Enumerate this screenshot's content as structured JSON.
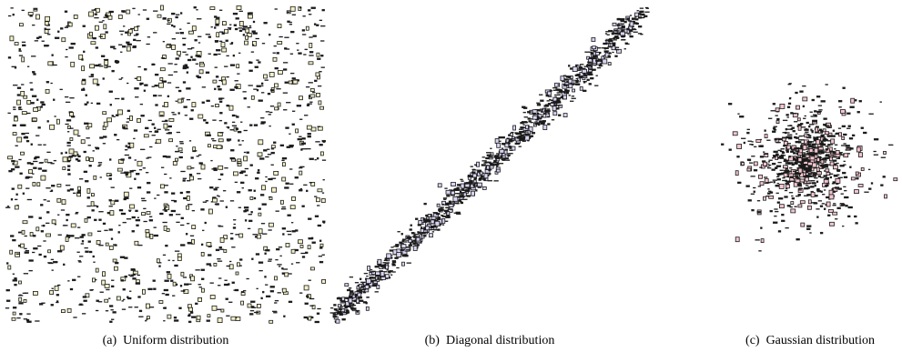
{
  "figure": {
    "captions": [
      "(a)  Uniform distribution",
      "(b)  Diagonal distribution",
      "(c)  Gaussian distribution"
    ]
  },
  "chart_data": [
    {
      "type": "scatter",
      "distribution": "uniform",
      "x_range": [
        0,
        1
      ],
      "y_range": [
        0,
        1
      ],
      "axes_visible": false,
      "grid": false,
      "point_count_approx": 1500,
      "mark": "small rectangles",
      "colors": {
        "stroke": "#1a1a1a",
        "fill": "#f3f0c8"
      },
      "seed": 11
    },
    {
      "type": "scatter",
      "distribution": "diagonal",
      "x_range": [
        0,
        1
      ],
      "y_range": [
        0,
        1
      ],
      "axes_visible": false,
      "grid": false,
      "point_count_approx": 1100,
      "line": {
        "slope": 1,
        "intercept": 0
      },
      "mark": "small rectangles",
      "colors": {
        "stroke": "#1a1a1a",
        "fill": "#d8d3f0"
      },
      "seed": 23
    },
    {
      "type": "scatter",
      "distribution": "gaussian",
      "x_range": [
        -1,
        1
      ],
      "y_range": [
        -1,
        1
      ],
      "axes_visible": false,
      "grid": false,
      "point_count_approx": 900,
      "mean": [
        0,
        0
      ],
      "mark": "small rectangles",
      "colors": {
        "stroke": "#1a1a1a",
        "fill": "#f3c6cf"
      },
      "seed": 37
    }
  ]
}
